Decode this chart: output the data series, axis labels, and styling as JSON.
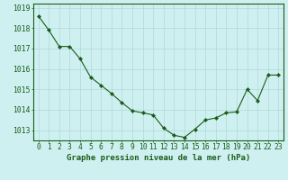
{
  "x": [
    0,
    1,
    2,
    3,
    4,
    5,
    6,
    7,
    8,
    9,
    10,
    11,
    12,
    13,
    14,
    15,
    16,
    17,
    18,
    19,
    20,
    21,
    22,
    23
  ],
  "y": [
    1018.6,
    1017.9,
    1017.1,
    1017.1,
    1016.5,
    1015.6,
    1015.2,
    1014.8,
    1014.35,
    1013.95,
    1013.85,
    1013.75,
    1013.1,
    1012.75,
    1012.65,
    1013.05,
    1013.5,
    1013.6,
    1013.85,
    1013.9,
    1015.0,
    1014.45,
    1015.7,
    1015.7
  ],
  "line_color": "#1a5c1a",
  "marker": "D",
  "marker_size": 2.2,
  "bg_color": "#cff0f0",
  "grid_color": "#b0d8d8",
  "xlabel": "Graphe pression niveau de la mer (hPa)",
  "xlabel_fontsize": 6.5,
  "tick_label_fontsize": 5.8,
  "ylim": [
    1012.5,
    1019.2
  ],
  "yticks": [
    1013,
    1014,
    1015,
    1016,
    1017,
    1018,
    1019
  ],
  "xticks": [
    0,
    1,
    2,
    3,
    4,
    5,
    6,
    7,
    8,
    9,
    10,
    11,
    12,
    13,
    14,
    15,
    16,
    17,
    18,
    19,
    20,
    21,
    22,
    23
  ],
  "tick_color": "#1a5c1a",
  "label_color": "#1a5c1a",
  "spine_color": "#1a5c1a"
}
